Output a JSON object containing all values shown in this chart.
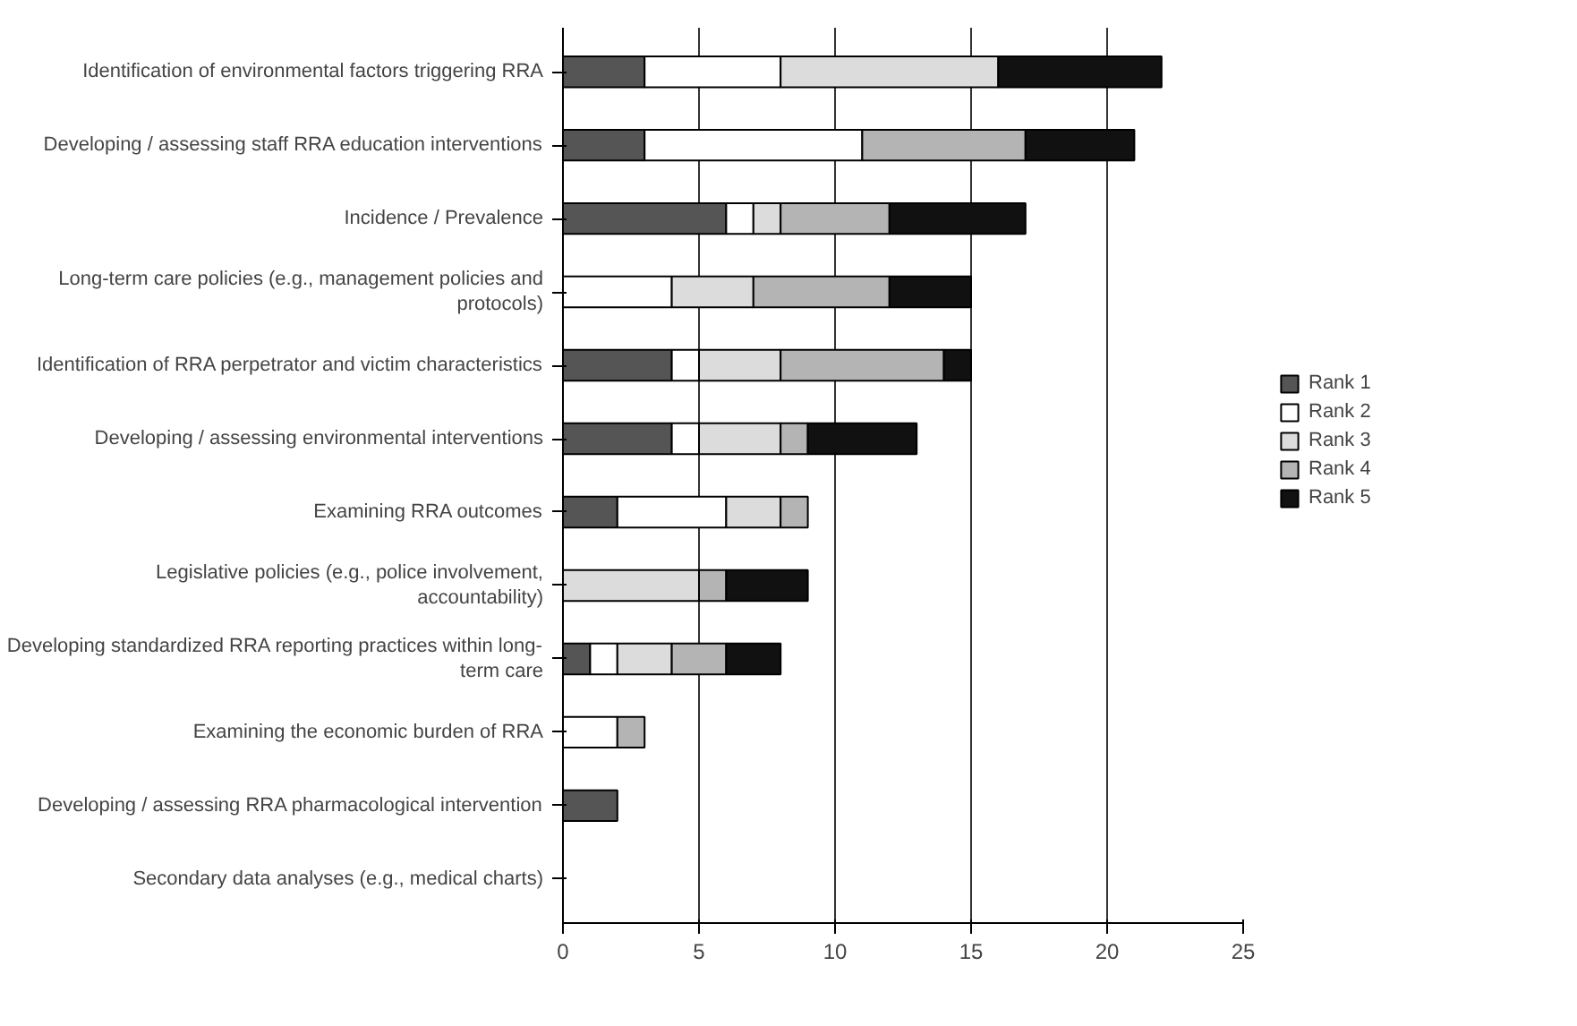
{
  "chart_data": {
    "type": "bar",
    "orientation": "horizontal",
    "stacked": true,
    "categories": [
      "Identification of environmental factors triggering RRA",
      "Developing / assessing staff RRA education interventions",
      "Incidence / Prevalence",
      "Long-term care policies (e.g., management policies and protocols)",
      "Identification of RRA perpetrator and victim characteristics",
      "Developing / assessing environmental interventions",
      "Examining RRA outcomes",
      "Legislative policies (e.g., police involvement, accountability)",
      "Developing standardized RRA reporting practices within long-term care",
      "Examining the economic burden of RRA",
      "Developing / assessing RRA pharmacological intervention",
      "Secondary data analyses (e.g., medical charts)"
    ],
    "series": [
      {
        "name": "Rank 1",
        "color": "#555555",
        "values": [
          3,
          3,
          6,
          0,
          4,
          4,
          2,
          0,
          1,
          0,
          2,
          0
        ]
      },
      {
        "name": "Rank 2",
        "color": "#ffffff",
        "values": [
          5,
          8,
          1,
          4,
          1,
          1,
          4,
          0,
          1,
          2,
          0,
          0
        ]
      },
      {
        "name": "Rank 3",
        "color": "#dcdcdc",
        "values": [
          8,
          0,
          1,
          3,
          3,
          3,
          2,
          5,
          2,
          0,
          0,
          0
        ]
      },
      {
        "name": "Rank 4",
        "color": "#b4b4b4",
        "values": [
          0,
          6,
          4,
          5,
          6,
          1,
          1,
          1,
          2,
          1,
          0,
          0
        ]
      },
      {
        "name": "Rank 5",
        "color": "#111111",
        "values": [
          6,
          4,
          5,
          3,
          1,
          4,
          0,
          3,
          2,
          0,
          0,
          0
        ]
      }
    ],
    "xlim": [
      0,
      25
    ],
    "xticks": [
      0,
      5,
      10,
      15,
      20,
      25
    ],
    "grid": "x",
    "legend": "right"
  }
}
